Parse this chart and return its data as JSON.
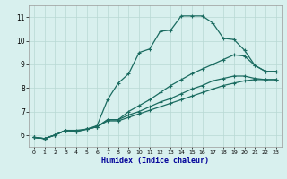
{
  "xlabel": "Humidex (Indice chaleur)",
  "background_color": "#d8f0ee",
  "grid_color": "#b8d8d4",
  "line_color": "#1a6b60",
  "xlim": [
    -0.5,
    23.5
  ],
  "ylim": [
    5.5,
    11.5
  ],
  "xticks": [
    0,
    1,
    2,
    3,
    4,
    5,
    6,
    7,
    8,
    9,
    10,
    11,
    12,
    13,
    14,
    15,
    16,
    17,
    18,
    19,
    20,
    21,
    22,
    23
  ],
  "yticks": [
    6,
    7,
    8,
    9,
    10,
    11
  ],
  "lines": [
    {
      "x": [
        0,
        1,
        2,
        3,
        4,
        5,
        6,
        7,
        8,
        9,
        10,
        11,
        12,
        13,
        14,
        15,
        16,
        17,
        18,
        19,
        20,
        21,
        22,
        23
      ],
      "y": [
        5.9,
        5.85,
        6.0,
        6.2,
        6.2,
        6.25,
        6.4,
        7.5,
        8.2,
        8.6,
        9.5,
        9.65,
        10.4,
        10.45,
        11.05,
        11.05,
        11.05,
        10.75,
        10.1,
        10.05,
        9.6,
        8.95,
        8.7,
        8.7
      ]
    },
    {
      "x": [
        0,
        1,
        2,
        3,
        4,
        5,
        6,
        7,
        8,
        9,
        10,
        11,
        12,
        13,
        14,
        15,
        16,
        17,
        18,
        19,
        20,
        21,
        22,
        23
      ],
      "y": [
        5.9,
        5.85,
        6.0,
        6.2,
        6.15,
        6.25,
        6.35,
        6.65,
        6.65,
        7.0,
        7.25,
        7.5,
        7.8,
        8.1,
        8.35,
        8.6,
        8.8,
        9.0,
        9.2,
        9.4,
        9.35,
        8.95,
        8.7,
        8.7
      ]
    },
    {
      "x": [
        0,
        1,
        2,
        3,
        4,
        5,
        6,
        7,
        8,
        9,
        10,
        11,
        12,
        13,
        14,
        15,
        16,
        17,
        18,
        19,
        20,
        21,
        22,
        23
      ],
      "y": [
        5.9,
        5.85,
        6.0,
        6.2,
        6.15,
        6.25,
        6.35,
        6.65,
        6.65,
        6.85,
        7.0,
        7.2,
        7.4,
        7.55,
        7.75,
        7.95,
        8.1,
        8.3,
        8.4,
        8.5,
        8.5,
        8.4,
        8.35,
        8.35
      ]
    },
    {
      "x": [
        0,
        1,
        2,
        3,
        4,
        5,
        6,
        7,
        8,
        9,
        10,
        11,
        12,
        13,
        14,
        15,
        16,
        17,
        18,
        19,
        20,
        21,
        22,
        23
      ],
      "y": [
        5.9,
        5.85,
        6.0,
        6.2,
        6.15,
        6.25,
        6.35,
        6.6,
        6.6,
        6.75,
        6.9,
        7.05,
        7.2,
        7.35,
        7.5,
        7.65,
        7.8,
        7.95,
        8.1,
        8.2,
        8.3,
        8.35,
        8.35,
        8.35
      ]
    }
  ]
}
